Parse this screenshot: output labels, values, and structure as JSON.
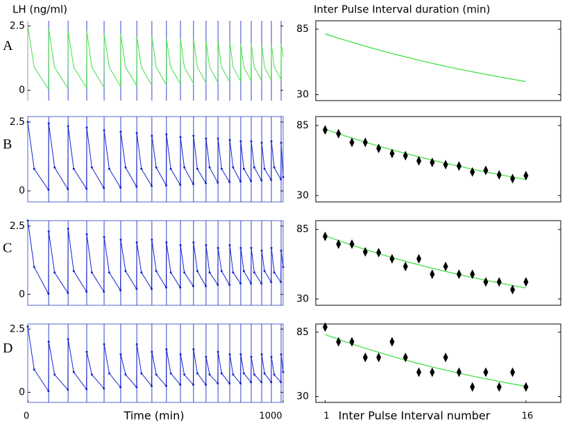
{
  "panel_labels": [
    "A",
    "B",
    "C",
    "D"
  ],
  "chart_data": [
    {
      "type": "line",
      "ylabel": "LH (ng/ml)",
      "box": false,
      "color": "#44dd44",
      "pulse_color": "#3344cc",
      "markers": false,
      "ylim": [
        -0.4,
        2.7
      ],
      "yticks": [
        0,
        2.5
      ],
      "xlim": [
        0,
        1000
      ],
      "x": [
        0,
        25,
        81,
        82,
        105,
        157,
        158,
        180,
        230,
        231,
        251,
        298,
        299,
        319,
        363,
        364,
        383,
        426,
        427,
        445,
        485,
        486,
        503,
        542,
        543,
        560,
        597,
        598,
        613,
        648,
        649,
        664,
        697,
        698,
        712,
        744,
        745,
        759,
        790,
        791,
        804,
        833,
        834,
        846,
        874,
        875,
        887,
        915,
        916,
        927,
        953,
        954,
        965,
        991,
        992,
        1000
      ],
      "values": [
        2.5,
        0.9,
        0.05,
        2.4,
        0.9,
        0.08,
        2.3,
        0.9,
        0.1,
        2.3,
        0.9,
        0.12,
        2.2,
        0.9,
        0.15,
        2.2,
        0.9,
        0.18,
        2.1,
        0.9,
        0.2,
        2.1,
        0.9,
        0.22,
        2.0,
        0.9,
        0.25,
        2.0,
        0.9,
        0.28,
        2.0,
        0.9,
        0.3,
        1.9,
        0.9,
        0.32,
        1.9,
        0.9,
        0.34,
        1.9,
        0.9,
        0.36,
        1.8,
        0.9,
        0.38,
        1.8,
        0.9,
        0.4,
        1.8,
        0.9,
        0.42,
        1.8,
        0.9,
        0.44,
        1.8,
        1.3
      ],
      "pulses": [
        82,
        158,
        231,
        299,
        364,
        427,
        486,
        543,
        598,
        649,
        698,
        745,
        791,
        834,
        875,
        916,
        954,
        992
      ]
    },
    {
      "type": "scatter",
      "ylabel": "Inter Pulse Interval duration (min)",
      "ylim": [
        25,
        92
      ],
      "yticks": [
        30,
        85
      ],
      "xlim": [
        0.3,
        18.6
      ],
      "x": [
        1,
        2,
        3,
        4,
        5,
        6,
        7,
        8,
        9,
        10,
        11,
        12,
        13,
        14,
        15,
        16
      ],
      "fit": {
        "color": "#33dd33",
        "values": [
          81,
          77.4,
          74.0,
          70.7,
          67.5,
          64.5,
          61.7,
          58.9,
          56.3,
          53.8,
          51.4,
          49.2,
          47.0,
          44.9,
          42.9,
          41.0
        ]
      }
    },
    {
      "type": "line",
      "box": true,
      "color": "#1122cc",
      "pulse_color": "#3344cc",
      "markers": true,
      "ylim": [
        -0.4,
        2.7
      ],
      "yticks": [
        0,
        2.5
      ],
      "xlim": [
        0,
        1000
      ],
      "x": [
        0,
        25,
        81,
        82,
        105,
        157,
        158,
        180,
        230,
        231,
        251,
        298,
        299,
        319,
        363,
        364,
        383,
        426,
        427,
        445,
        485,
        486,
        503,
        542,
        543,
        560,
        597,
        598,
        613,
        648,
        649,
        664,
        697,
        698,
        712,
        744,
        745,
        759,
        790,
        791,
        804,
        833,
        834,
        846,
        874,
        875,
        887,
        915,
        916,
        927,
        953,
        954,
        965,
        991,
        992,
        1000
      ],
      "values": [
        2.5,
        0.8,
        0.04,
        2.45,
        0.85,
        0.06,
        2.35,
        0.8,
        0.08,
        2.3,
        0.85,
        0.1,
        2.2,
        0.8,
        0.12,
        2.15,
        0.85,
        0.15,
        2.1,
        0.8,
        0.18,
        2.0,
        0.85,
        0.2,
        2.05,
        0.8,
        0.22,
        1.95,
        0.85,
        0.25,
        2.0,
        0.8,
        0.28,
        1.9,
        0.85,
        0.3,
        1.9,
        0.8,
        0.32,
        1.85,
        0.85,
        0.34,
        1.8,
        0.8,
        0.36,
        1.8,
        0.85,
        0.38,
        1.75,
        0.8,
        0.4,
        1.8,
        0.85,
        0.42,
        1.75,
        0.5
      ],
      "pulses": [
        82,
        158,
        231,
        299,
        364,
        427,
        486,
        543,
        598,
        649,
        698,
        745,
        791,
        834,
        875,
        916,
        954,
        992
      ]
    },
    {
      "type": "scatter",
      "ylim": [
        25,
        92
      ],
      "yticks": [
        30,
        85
      ],
      "xlim": [
        0.3,
        18.6
      ],
      "x": [
        1,
        2,
        3,
        4,
        5,
        6,
        7,
        8,
        9,
        10,
        11,
        12,
        13,
        14,
        15,
        16
      ],
      "fit": {
        "color": "#33dd33",
        "values": [
          82,
          78.5,
          75.1,
          71.9,
          68.8,
          65.9,
          63.1,
          60.4,
          57.8,
          55.3,
          53.0,
          50.7,
          48.5,
          46.5,
          44.5,
          42.6
        ]
      },
      "observed": {
        "color": "#000000",
        "values": [
          81.5,
          78.6,
          71.7,
          71.7,
          67,
          63,
          61.3,
          57.2,
          56,
          54.3,
          53.2,
          48.5,
          49.7,
          46.2,
          43.3,
          45.6
        ]
      }
    },
    {
      "type": "line",
      "box": true,
      "color": "#1122cc",
      "pulse_color": "#3344cc",
      "markers": true,
      "ylim": [
        -0.4,
        2.7
      ],
      "yticks": [
        0,
        2.5
      ],
      "xlim": [
        0,
        1000
      ],
      "x": [
        0,
        25,
        81,
        82,
        105,
        157,
        158,
        180,
        230,
        231,
        251,
        298,
        299,
        319,
        363,
        364,
        383,
        426,
        427,
        445,
        485,
        486,
        503,
        542,
        543,
        560,
        597,
        598,
        613,
        648,
        649,
        664,
        697,
        698,
        712,
        744,
        745,
        759,
        790,
        791,
        804,
        833,
        834,
        846,
        874,
        875,
        887,
        915,
        916,
        927,
        953,
        954,
        965,
        991,
        992,
        1000
      ],
      "values": [
        2.7,
        1.0,
        0.02,
        2.3,
        0.8,
        0.05,
        2.4,
        0.85,
        0.1,
        2.2,
        0.8,
        0.1,
        2.1,
        0.8,
        0.15,
        2.0,
        0.85,
        0.2,
        1.9,
        0.8,
        0.2,
        2.0,
        0.85,
        0.25,
        1.9,
        0.8,
        0.25,
        1.8,
        0.8,
        0.3,
        1.9,
        0.85,
        0.3,
        1.8,
        0.8,
        0.35,
        1.7,
        0.85,
        0.35,
        1.8,
        0.8,
        0.4,
        1.7,
        0.85,
        0.4,
        1.7,
        0.8,
        0.4,
        1.6,
        0.85,
        0.45,
        1.7,
        0.8,
        0.45,
        1.6,
        1.0
      ],
      "pulses": [
        82,
        158,
        231,
        299,
        364,
        427,
        486,
        543,
        598,
        649,
        698,
        745,
        791,
        834,
        875,
        916,
        954,
        992
      ]
    },
    {
      "type": "scatter",
      "ylim": [
        25,
        92
      ],
      "yticks": [
        30,
        85
      ],
      "xlim": [
        0.3,
        18.6
      ],
      "x": [
        1,
        2,
        3,
        4,
        5,
        6,
        7,
        8,
        9,
        10,
        11,
        12,
        13,
        14,
        15,
        16
      ],
      "fit": {
        "color": "#33dd33",
        "values": [
          80,
          76.2,
          72.6,
          69.2,
          65.9,
          62.8,
          59.8,
          57.0,
          54.3,
          51.8,
          49.3,
          47.0,
          44.8,
          42.7,
          40.6,
          38.7
        ]
      },
      "observed": {
        "color": "#000000",
        "values": [
          79.5,
          73.4,
          73.4,
          67.3,
          66.7,
          61.8,
          55.7,
          61.8,
          49.6,
          55.7,
          49.6,
          49.6,
          43.5,
          43.5,
          37.4,
          43.5
        ]
      }
    },
    {
      "type": "line",
      "box": true,
      "color": "#1122cc",
      "pulse_color": "#3344cc",
      "markers": true,
      "xlabel": "Time (min)",
      "ylim": [
        -0.4,
        2.7
      ],
      "yticks": [
        0,
        2.5
      ],
      "xlim": [
        0,
        1000
      ],
      "xticks": [
        0,
        1000
      ],
      "x": [
        0,
        25,
        81,
        82,
        105,
        157,
        158,
        180,
        230,
        231,
        251,
        298,
        299,
        319,
        363,
        364,
        383,
        426,
        427,
        445,
        485,
        486,
        503,
        542,
        543,
        560,
        597,
        598,
        613,
        648,
        649,
        664,
        697,
        698,
        712,
        744,
        745,
        759,
        790,
        791,
        804,
        833,
        834,
        846,
        874,
        875,
        887,
        915,
        916,
        927,
        953,
        954,
        965,
        991,
        992,
        1000
      ],
      "values": [
        2.6,
        0.9,
        0.05,
        2.0,
        0.7,
        0.1,
        2.1,
        0.8,
        0.12,
        1.6,
        0.7,
        0.15,
        1.9,
        0.75,
        0.2,
        1.5,
        0.7,
        0.2,
        1.9,
        0.75,
        0.25,
        1.6,
        0.7,
        0.25,
        1.7,
        0.75,
        0.3,
        1.5,
        0.7,
        0.3,
        1.7,
        0.75,
        0.3,
        1.4,
        0.7,
        0.35,
        1.6,
        0.75,
        0.35,
        1.5,
        0.7,
        0.35,
        1.5,
        0.75,
        0.4,
        1.4,
        0.7,
        0.4,
        1.5,
        0.75,
        0.4,
        1.4,
        0.7,
        0.4,
        1.5,
        0.8
      ],
      "pulses": [
        82,
        158,
        231,
        299,
        364,
        427,
        486,
        543,
        598,
        649,
        698,
        745,
        791,
        834,
        875,
        916,
        954,
        992
      ]
    },
    {
      "type": "scatter",
      "xlabel": "Inter Pulse Interval number",
      "ylim": [
        25,
        92
      ],
      "yticks": [
        30,
        85
      ],
      "xlim": [
        0.3,
        18.6
      ],
      "xticks": [
        1,
        16
      ],
      "x": [
        1,
        2,
        3,
        4,
        5,
        6,
        7,
        8,
        9,
        10,
        11,
        12,
        13,
        14,
        15,
        16
      ],
      "fit": {
        "color": "#33dd33",
        "values": [
          83,
          78.9,
          75.0,
          71.3,
          67.8,
          64.4,
          61.2,
          58.2,
          55.3,
          52.6,
          50.0,
          47.5,
          45.2,
          42.9,
          40.8,
          38.8
        ]
      },
      "observed": {
        "color": "#000000",
        "values": [
          89.4,
          76.8,
          76.8,
          63.5,
          63.5,
          76.8,
          63.5,
          50.8,
          50.8,
          63.5,
          50.8,
          38.2,
          50.8,
          38.2,
          50.8,
          38.2
        ]
      }
    }
  ]
}
